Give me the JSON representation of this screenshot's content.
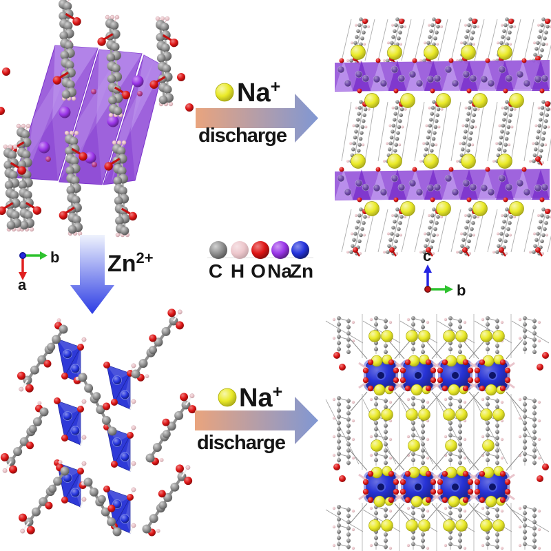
{
  "arrow_top": {
    "ion_symbol": "Na",
    "ion_charge": "+",
    "label": "discharge"
  },
  "arrow_bottom": {
    "ion_symbol": "Na",
    "ion_charge": "+",
    "label": "discharge"
  },
  "arrow_left": {
    "ion_symbol": "Zn",
    "ion_charge": "2+"
  },
  "legend": {
    "items": [
      {
        "symbol": "C",
        "color": "#8f8f8f"
      },
      {
        "symbol": "H",
        "color": "#edc7cc"
      },
      {
        "symbol": "O",
        "color": "#de1414"
      },
      {
        "symbol": "Na",
        "color": "#9a35e8"
      },
      {
        "symbol": "Zn",
        "color": "#2433dc"
      }
    ]
  },
  "axes_top_left": {
    "right_label": "b",
    "right_color": "#2ec22e",
    "down_label": "a",
    "down_color": "#e02020",
    "origin_color": "#2629df"
  },
  "axes_right": {
    "up_label": "c",
    "up_color": "#2525e2",
    "right_label": "b",
    "right_color": "#2ec22e",
    "origin_color": "#c21414"
  },
  "colors": {
    "background": "#ffffff",
    "text": "#151515",
    "arrow_gradient_start": "#e9a47e",
    "arrow_gradient_end": "#8097d3",
    "zn_arrow_top": "#eff3fd",
    "zn_arrow_bottom": "#2c3ce4",
    "na_ion_yellow": "#eaea28",
    "polyhedra_purple": "#9a5cdb",
    "polyhedra_purple_light": "#bb92ec",
    "polyhedra_purple_dark": "#7c33cc",
    "band_sodium": "#6d48a8",
    "polyhedra_blue": "#2733d6",
    "magenta_minor": "#b83a8c",
    "bond_gray": "#8f8f8f",
    "bond_red": "#c41010",
    "cell_line": "#adadad",
    "hydrogen_stick": "#e9c4cb"
  }
}
